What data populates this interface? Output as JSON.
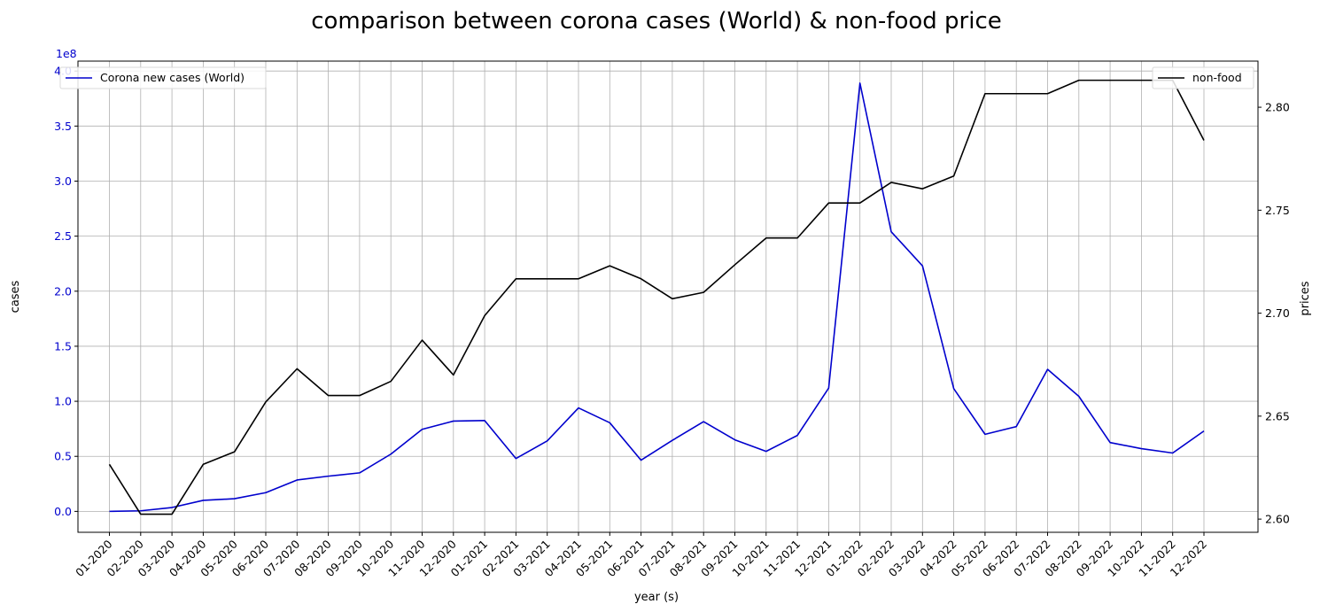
{
  "chart_data": {
    "type": "line",
    "title": "comparison between corona cases (World) & non-food price",
    "xlabel": "year (s)",
    "ylabel_left": "cases",
    "ylabel_right": "prices",
    "left_axis_color": "#0000cd",
    "left_offset_text": "1e8",
    "left_ylim": [
      -0.19,
      4.09
    ],
    "left_ticks": [
      "0.0",
      "0.5",
      "1.0",
      "1.5",
      "2.0",
      "2.5",
      "3.0",
      "3.5",
      "4.0"
    ],
    "right_ylim": [
      2.5936,
      2.8224
    ],
    "right_ticks": [
      "2.60",
      "2.65",
      "2.70",
      "2.75",
      "2.80"
    ],
    "grid": true,
    "categories": [
      "01-2020",
      "02-2020",
      "03-2020",
      "04-2020",
      "05-2020",
      "06-2020",
      "07-2020",
      "08-2020",
      "09-2020",
      "10-2020",
      "11-2020",
      "12-2020",
      "01-2021",
      "02-2021",
      "03-2021",
      "04-2021",
      "05-2021",
      "06-2021",
      "07-2021",
      "08-2021",
      "09-2021",
      "10-2021",
      "11-2021",
      "12-2021",
      "01-2022",
      "02-2022",
      "03-2022",
      "04-2022",
      "05-2022",
      "06-2022",
      "07-2022",
      "08-2022",
      "09-2022",
      "10-2022",
      "11-2022",
      "12-2022"
    ],
    "series": [
      {
        "name": "Corona new cases (World)",
        "axis": "left",
        "color": "#0000cd",
        "legend_position": "top-left",
        "values": [
          0.0,
          0.005,
          0.035,
          0.1,
          0.115,
          0.17,
          0.285,
          0.32,
          0.35,
          0.52,
          0.745,
          0.82,
          0.825,
          0.48,
          0.64,
          0.94,
          0.805,
          0.465,
          0.645,
          0.815,
          0.65,
          0.545,
          0.69,
          1.12,
          3.89,
          2.54,
          2.23,
          1.115,
          0.7,
          0.77,
          1.29,
          1.045,
          0.625,
          0.57,
          0.53,
          0.73
        ]
      },
      {
        "name": "non-food",
        "axis": "right",
        "color": "#000000",
        "legend_position": "top-right",
        "values": [
          2.6266,
          2.6024,
          2.6024,
          2.6266,
          2.6327,
          2.6569,
          2.673,
          2.66,
          2.66,
          2.6669,
          2.6869,
          2.67,
          2.6988,
          2.7167,
          2.7167,
          2.7167,
          2.723,
          2.7167,
          2.707,
          2.7101,
          2.7235,
          2.7365,
          2.7365,
          2.7535,
          2.7535,
          2.7635,
          2.7604,
          2.7666,
          2.8066,
          2.8066,
          2.8066,
          2.8131,
          2.8131,
          2.8131,
          2.8131,
          2.7839
        ]
      }
    ]
  }
}
